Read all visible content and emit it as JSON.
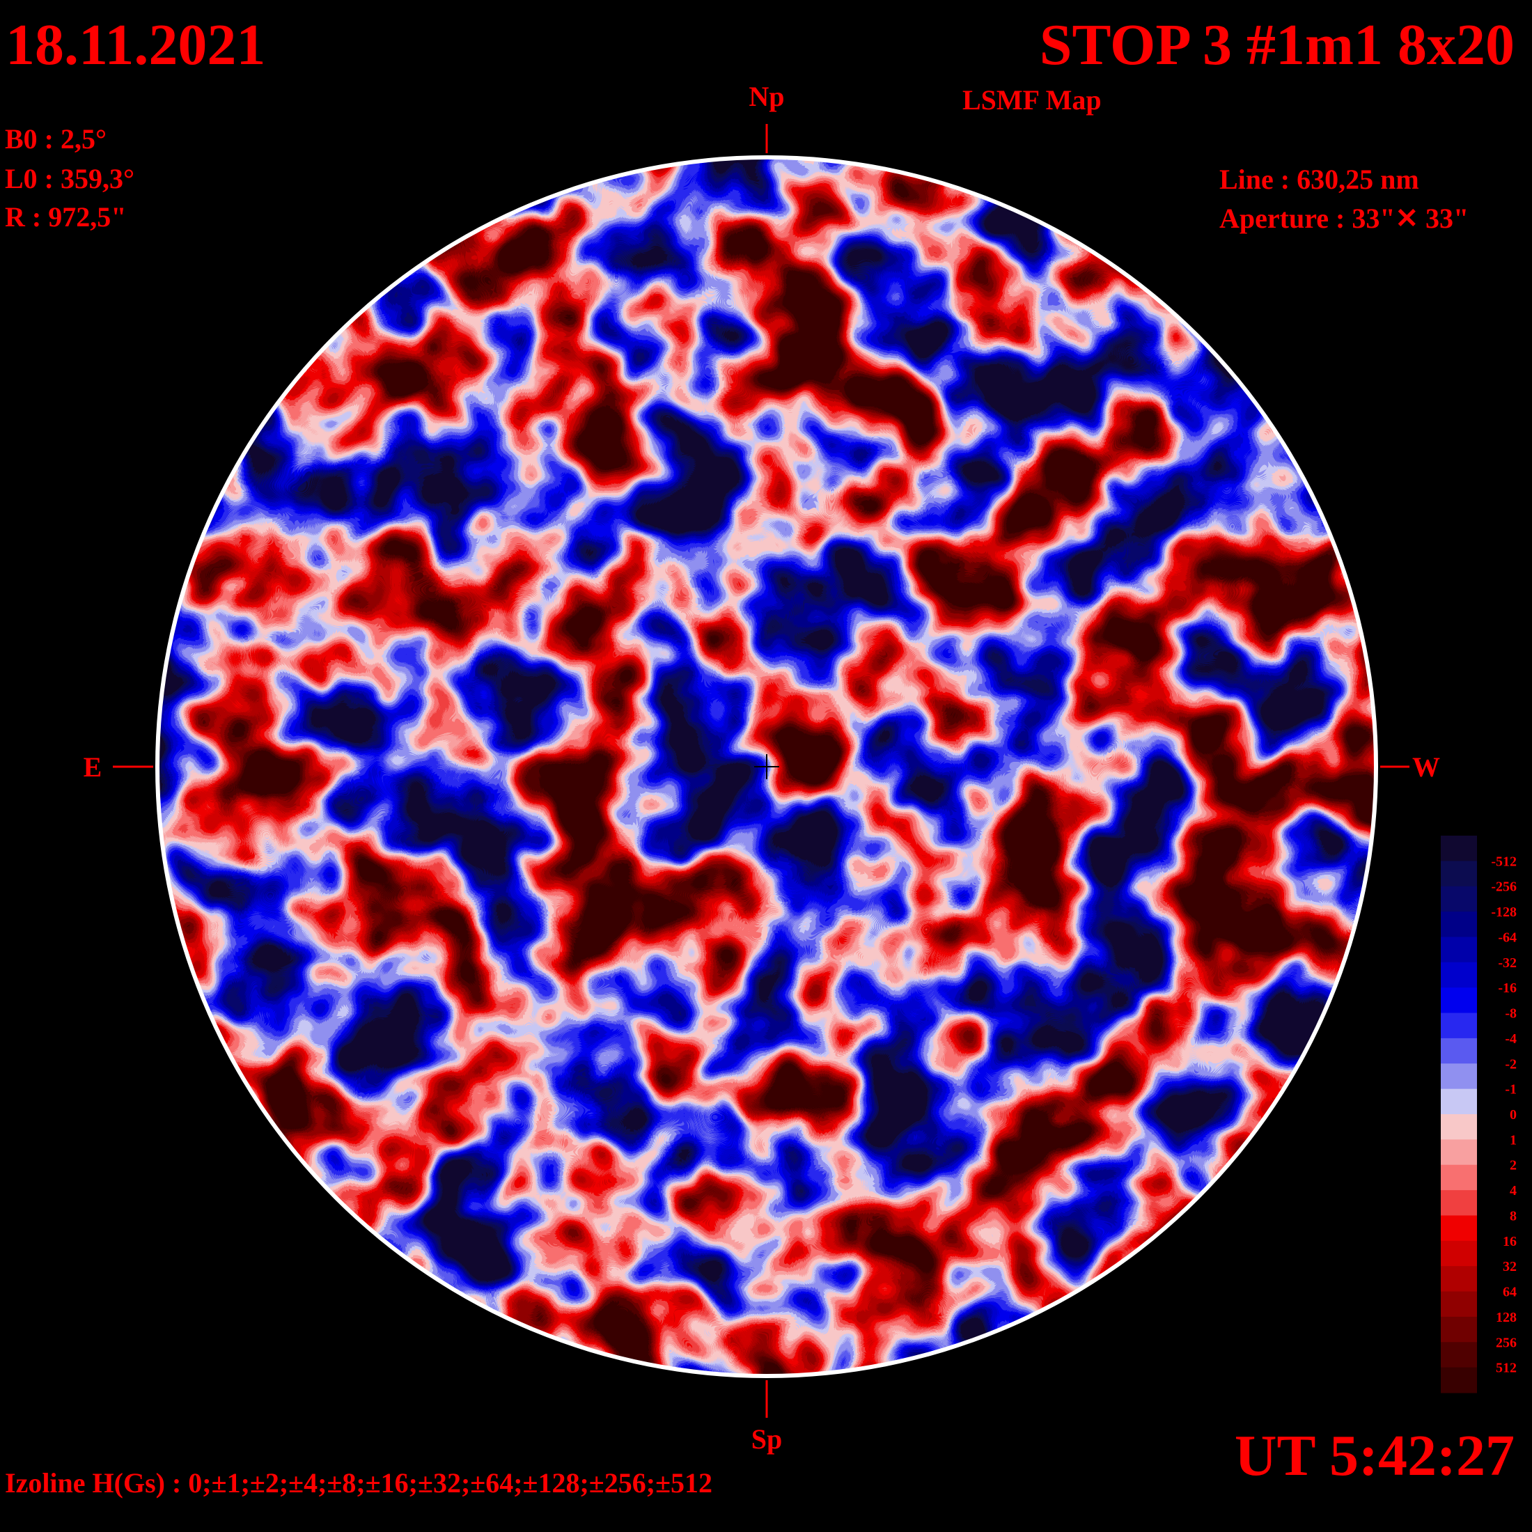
{
  "header": {
    "date": "18.11.2021",
    "title": "STOP 3 #1m1 8x20",
    "subtitle": "LSMF  Map",
    "params": [
      "B0 : 2,5°",
      "L0 : 359,3°",
      "R  : 972,5\""
    ],
    "instrument": [
      "Line :  630,25 nm",
      "Aperture : 33\"✕ 33\""
    ]
  },
  "directions": {
    "north": "Np",
    "south": "Sp",
    "east": "E",
    "west": "W"
  },
  "legend": {
    "labels": [
      "-512",
      "-256",
      "-128",
      "-64",
      "-32",
      "-16",
      "-8",
      "-4",
      "-2",
      "-1",
      "0",
      "1",
      "2",
      "4",
      "8",
      "16",
      "32",
      "64",
      "128",
      "256",
      "512"
    ],
    "colors": [
      "#100830",
      "#0c0c50",
      "#08086a",
      "#000088",
      "#0000aa",
      "#0000cc",
      "#0000ee",
      "#2828f0",
      "#5a5af0",
      "#9090f0",
      "#c8c8f4",
      "#f8c8c8",
      "#f8a0a0",
      "#f87070",
      "#f04040",
      "#f00000",
      "#d00000",
      "#b00000",
      "#900000",
      "#700000",
      "#500000",
      "#380000"
    ]
  },
  "footer": {
    "isolines": "Izoline H(Gs) : 0;±1;±2;±4;±8;±16;±32;±64;±128;±256;±512",
    "time": "UT 5:42:27"
  }
}
